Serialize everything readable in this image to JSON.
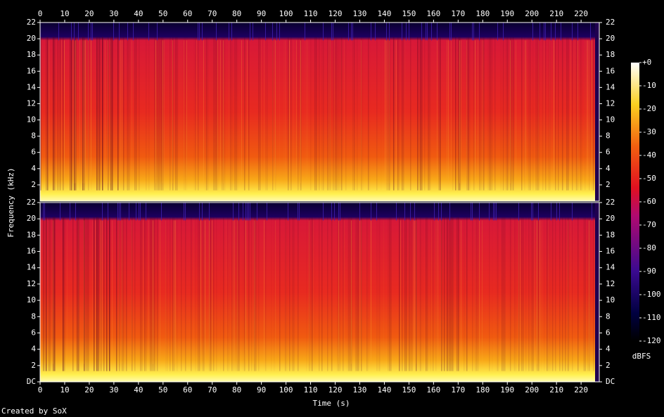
{
  "chart_data": {
    "type": "spectrogram",
    "x_label": "Time (s)",
    "y_label": "Frequency (kHz)",
    "xlim": [
      0,
      227.4
    ],
    "xticks": [
      0,
      10,
      20,
      30,
      40,
      50,
      60,
      70,
      80,
      90,
      100,
      110,
      120,
      130,
      140,
      150,
      160,
      170,
      180,
      190,
      200,
      210,
      220
    ],
    "channels": [
      {
        "ylim": [
          0,
          22
        ],
        "yticks": [
          2,
          4,
          6,
          8,
          10,
          12,
          14,
          16,
          18,
          20,
          22
        ]
      },
      {
        "ylim": [
          0,
          22
        ],
        "yticks": [
          {
            "value": 0,
            "label": "DC"
          },
          2,
          4,
          6,
          8,
          10,
          12,
          14,
          16,
          18,
          20,
          22
        ]
      }
    ],
    "colorbar": {
      "label": "dBFS",
      "lim": [
        -120,
        0
      ],
      "ticks": [
        {
          "value": 0,
          "label": "+0"
        },
        -10,
        -20,
        -30,
        -40,
        -50,
        -60,
        -70,
        -80,
        -90,
        -100,
        -110,
        -120
      ]
    },
    "credit": "Created by SoX"
  }
}
